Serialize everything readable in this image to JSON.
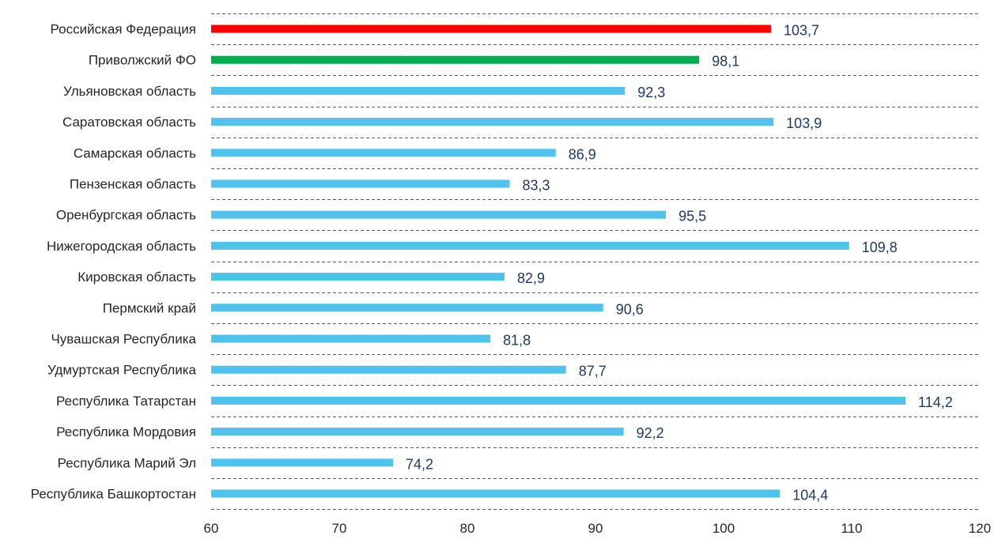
{
  "chart_data": {
    "type": "bar",
    "orientation": "horizontal",
    "title": "",
    "xlabel": "",
    "ylabel": "",
    "xlim": [
      60,
      120
    ],
    "x_ticks": [
      60,
      70,
      80,
      90,
      100,
      110,
      120
    ],
    "grid": "horizontal dashed separators",
    "categories": [
      "Российская Федерация",
      "Приволжский ФО",
      "Ульяновская область",
      "Саратовская область",
      "Самарская область",
      "Пензенская область",
      "Оренбургская область",
      "Нижегородская область",
      "Кировская область",
      "Пермский край",
      "Чувашская Республика",
      "Удмуртская Республика",
      "Республика Татарстан",
      "Республика Мордовия",
      "Республика Марий Эл",
      "Республика Башкортостан"
    ],
    "values": [
      103.7,
      98.1,
      92.3,
      103.9,
      86.9,
      83.3,
      95.5,
      109.8,
      82.9,
      90.6,
      81.8,
      87.7,
      114.2,
      92.2,
      74.2,
      104.4
    ],
    "value_labels": [
      "103,7",
      "98,1",
      "92,3",
      "103,9",
      "86,9",
      "83,3",
      "95,5",
      "109,8",
      "82,9",
      "90,6",
      "81,8",
      "87,7",
      "114,2",
      "92,2",
      "74,2",
      "104,4"
    ],
    "bar_colors": [
      "#ff0000",
      "#00b050",
      "#4fc3eb",
      "#4fc3eb",
      "#4fc3eb",
      "#4fc3eb",
      "#4fc3eb",
      "#4fc3eb",
      "#4fc3eb",
      "#4fc3eb",
      "#4fc3eb",
      "#4fc3eb",
      "#4fc3eb",
      "#4fc3eb",
      "#4fc3eb",
      "#4fc3eb"
    ]
  }
}
